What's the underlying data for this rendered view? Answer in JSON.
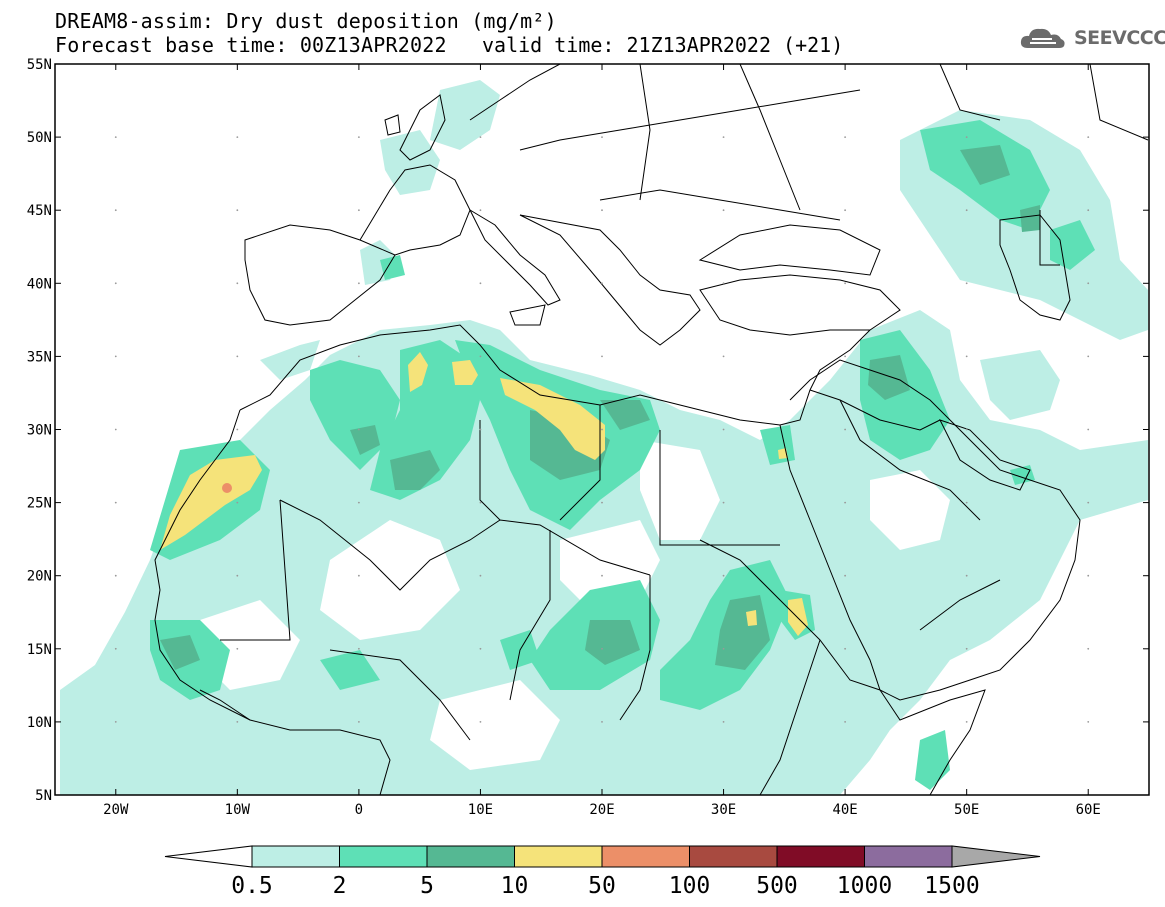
{
  "header": {
    "title_line1": "DREAM8-assim: Dry dust deposition (mg/m²)",
    "title_line2": "Forecast base time: 00Z13APR2022",
    "valid_time": "valid time: 21Z13APR2022 (+21)",
    "logo_text": "SEEVCCC"
  },
  "map": {
    "lat_labels": [
      "55N",
      "50N",
      "45N",
      "40N",
      "35N",
      "30N",
      "25N",
      "20N",
      "15N",
      "10N",
      "5N"
    ],
    "lon_labels": [
      "20W",
      "10W",
      "0",
      "10E",
      "20E",
      "30E",
      "40E",
      "50E",
      "60E"
    ],
    "lon_range": [
      -25,
      65
    ],
    "lat_range": [
      5,
      55
    ]
  },
  "legend": {
    "colors": [
      "#bdeee5",
      "#5ee0b6",
      "#55b893",
      "#f5e37a",
      "#ec8f68",
      "#a84a40",
      "#800c26",
      "#8c6c9e"
    ],
    "under_color": "#ffffff",
    "over_color": "#a8a8a8",
    "labels": [
      "0.5",
      "2",
      "5",
      "10",
      "50",
      "100",
      "500",
      "1000",
      "1500"
    ]
  },
  "colors": {
    "light": "#bdeee5",
    "medium": "#5ee0b6",
    "dark": "#55b893",
    "yellow": "#f5e37a",
    "salmon": "#ec8f68"
  }
}
